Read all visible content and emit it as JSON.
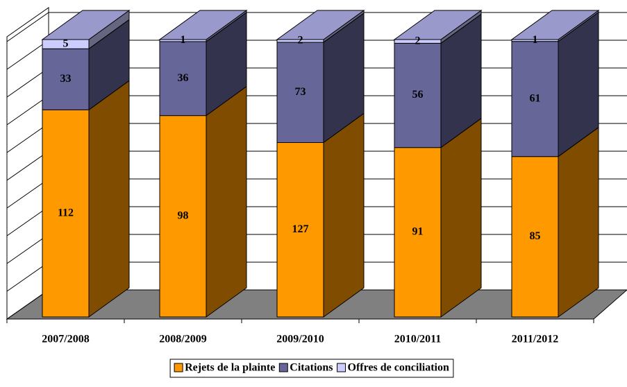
{
  "chart_data": {
    "type": "bar",
    "stacking": "percent",
    "three_d": true,
    "categories": [
      "2007/2008",
      "2008/2009",
      "2009/2010",
      "2010/2011",
      "2011/2012"
    ],
    "series": [
      {
        "name": "Rejets de la plainte",
        "color": "#ff9900",
        "values": [
          112,
          98,
          127,
          91,
          85
        ]
      },
      {
        "name": "Citations",
        "color": "#666699",
        "values": [
          33,
          36,
          73,
          56,
          61
        ]
      },
      {
        "name": "Offres de conciliation",
        "color": "#ccccff",
        "values": [
          5,
          1,
          2,
          2,
          1
        ]
      }
    ],
    "ylim": [
      0,
      100
    ],
    "yticks": [
      0,
      10,
      20,
      30,
      40,
      50,
      60,
      70,
      80,
      90,
      100
    ],
    "ytick_labels": false,
    "grid": true,
    "legend": "bottom"
  }
}
